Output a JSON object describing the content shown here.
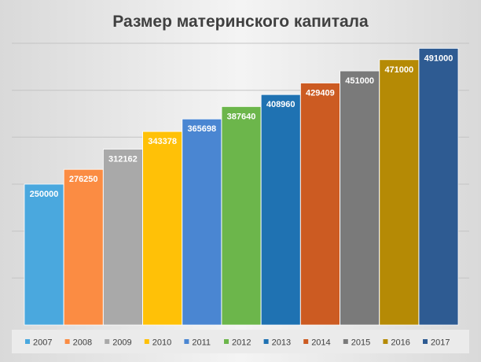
{
  "chart_data": {
    "type": "bar",
    "title": "Размер материнского капитала",
    "xlabel": "",
    "ylabel": "",
    "ylim": [
      0,
      500000
    ],
    "grid": true,
    "legend_position": "bottom",
    "series": [
      {
        "name": "2007",
        "value": 250000,
        "value_label": "250000",
        "color": "#4aa8de"
      },
      {
        "name": "2008",
        "value": 276250,
        "value_label": "276250",
        "color": "#fb8c43"
      },
      {
        "name": "2009",
        "value": 312162,
        "value_label": "312162",
        "color": "#a9a9a9"
      },
      {
        "name": "2010",
        "value": 343378,
        "value_label": "343378",
        "color": "#ffc107"
      },
      {
        "name": "2011",
        "value": 365698,
        "value_label": "365698",
        "color": "#4a86d2"
      },
      {
        "name": "2012",
        "value": 387640,
        "value_label": "387640",
        "color": "#6cb64b"
      },
      {
        "name": "2013",
        "value": 408960,
        "value_label": "408960",
        "color": "#1f72b2"
      },
      {
        "name": "2014",
        "value": 429409,
        "value_label": "429409",
        "color": "#cc5b22"
      },
      {
        "name": "2015",
        "value": 451000,
        "value_label": "451000",
        "color": "#7a7a7a"
      },
      {
        "name": "2016",
        "value": 471000,
        "value_label": "471000",
        "color": "#b58a05"
      },
      {
        "name": "2017",
        "value": 491000,
        "value_label": "491000",
        "color": "#2e5b92"
      }
    ]
  }
}
